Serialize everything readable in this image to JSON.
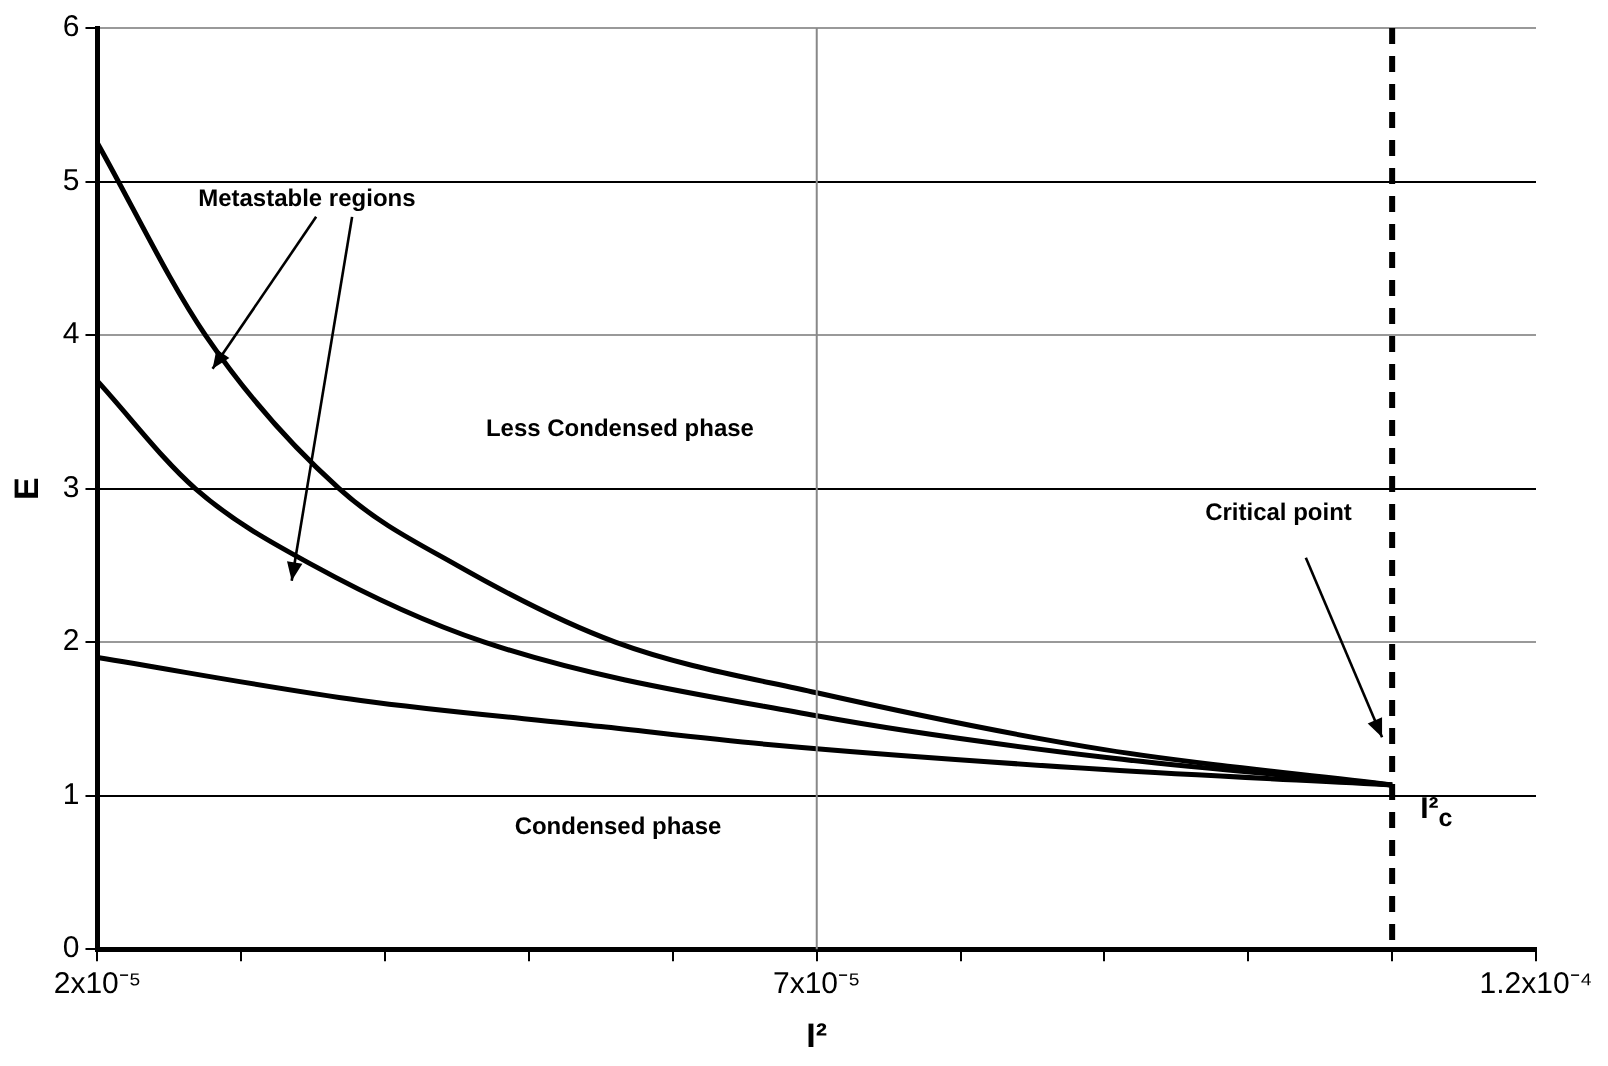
{
  "chart_data": {
    "type": "line",
    "xlabel": "I²",
    "ylabel": "E",
    "xlim": [
      2e-05,
      0.00012
    ],
    "xticks": [
      {
        "value": 2e-05,
        "label": "2x10⁻⁵"
      },
      {
        "value": 3e-05,
        "label": null
      },
      {
        "value": 4e-05,
        "label": null
      },
      {
        "value": 5e-05,
        "label": null
      },
      {
        "value": 6e-05,
        "label": null
      },
      {
        "value": 7e-05,
        "label": "7x10⁻⁵"
      },
      {
        "value": 8e-05,
        "label": null
      },
      {
        "value": 9e-05,
        "label": null
      },
      {
        "value": 0.0001,
        "label": null
      },
      {
        "value": 0.00011,
        "label": null
      },
      {
        "value": 0.00012,
        "label": "1.2x10⁻⁴"
      }
    ],
    "ylim": [
      0,
      6
    ],
    "yticks": [
      0,
      1,
      2,
      3,
      4,
      5,
      6
    ],
    "series": [
      {
        "color": "#000000",
        "x": [
          2e-05,
          2.75e-05,
          3.68e-05,
          4.5e-05,
          5.6e-05,
          7e-05,
          9e-05,
          0.00011
        ],
        "values": [
          5.25,
          4,
          3,
          2.5,
          2,
          1.67,
          1.3,
          1.07
        ]
      },
      {
        "color": "#000000",
        "x": [
          2e-05,
          2.68e-05,
          3.5e-05,
          4.69e-05,
          7e-05,
          9e-05,
          0.00011
        ],
        "values": [
          3.7,
          3,
          2.5,
          2,
          1.52,
          1.25,
          1.07
        ]
      },
      {
        "color": "#000000",
        "x": [
          2e-05,
          3.83e-05,
          5.5e-05,
          6.7e-05,
          9e-05,
          0.00011
        ],
        "values": [
          1.9,
          1.62,
          1.45,
          1.33,
          1.17,
          1.07
        ]
      }
    ],
    "ref_lines": [
      {
        "axis": "x",
        "value": 0.00011,
        "label": "I²$_{c}$",
        "color": "#000000",
        "line_style": "dashed"
      },
      {
        "axis": "x",
        "value": 7e-05,
        "color": "#888888",
        "line_style": "solid"
      }
    ],
    "annotations": [
      "Metastable regions",
      "Less Condensed phase",
      "Condensed phase",
      "Critical point"
    ],
    "grid": "y",
    "legend": false,
    "marker": "none",
    "line_style": "solid"
  }
}
